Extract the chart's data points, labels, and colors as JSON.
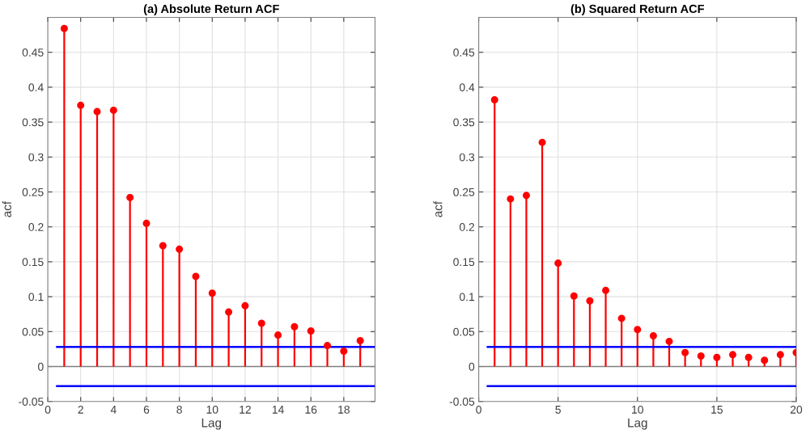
{
  "chart_data": [
    {
      "type": "lollipop",
      "title": "(a) Absolute Return ACF",
      "xlabel": "Lag",
      "ylabel": "acf",
      "x": [
        1,
        2,
        3,
        4,
        5,
        6,
        7,
        8,
        9,
        10,
        11,
        12,
        13,
        14,
        15,
        16,
        17,
        18,
        19
      ],
      "series": [
        {
          "color": "#ff0000",
          "values": [
            0.484,
            0.374,
            0.365,
            0.367,
            0.242,
            0.205,
            0.173,
            0.168,
            0.129,
            0.105,
            0.078,
            0.087,
            0.062,
            0.045,
            0.057,
            0.051,
            0.03,
            0.022,
            0.037
          ]
        }
      ],
      "xlim": [
        0,
        19.9
      ],
      "xticks": [
        0,
        2,
        4,
        6,
        8,
        10,
        12,
        14,
        16,
        18
      ],
      "ylim": [
        -0.05,
        0.5
      ],
      "yticks": [
        -0.05,
        0,
        0.05,
        0.1,
        0.15,
        0.2,
        0.25,
        0.3,
        0.35,
        0.4,
        0.45
      ],
      "ref_lines": [
        {
          "axis": "y",
          "value": 0.028,
          "color": "#0000ff"
        },
        {
          "axis": "y",
          "value": -0.028,
          "color": "#0000ff"
        }
      ],
      "grid": true,
      "marker": "circle"
    },
    {
      "type": "lollipop",
      "title": "(b) Squared Return ACF",
      "xlabel": "Lag",
      "ylabel": "acf",
      "x": [
        1,
        2,
        3,
        4,
        5,
        6,
        7,
        8,
        9,
        10,
        11,
        12,
        13,
        14,
        15,
        16,
        17,
        18,
        19,
        20
      ],
      "series": [
        {
          "color": "#ff0000",
          "values": [
            0.382,
            0.24,
            0.245,
            0.321,
            0.148,
            0.101,
            0.094,
            0.109,
            0.069,
            0.053,
            0.044,
            0.036,
            0.02,
            0.015,
            0.013,
            0.017,
            0.013,
            0.009,
            0.017,
            0.02
          ]
        }
      ],
      "xlim": [
        0,
        20
      ],
      "xticks": [
        0,
        5,
        10,
        15,
        20
      ],
      "ylim": [
        -0.05,
        0.5
      ],
      "yticks": [
        -0.05,
        0,
        0.05,
        0.1,
        0.15,
        0.2,
        0.25,
        0.3,
        0.35,
        0.4,
        0.45
      ],
      "ref_lines": [
        {
          "axis": "y",
          "value": 0.028,
          "color": "#0000ff"
        },
        {
          "axis": "y",
          "value": -0.028,
          "color": "#0000ff"
        }
      ],
      "grid": true,
      "marker": "circle"
    }
  ]
}
